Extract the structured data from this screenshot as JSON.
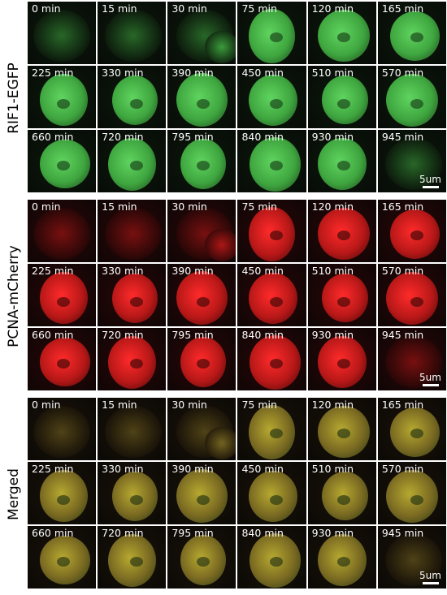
{
  "panels": [
    {
      "label": "RIF1-EGFP",
      "scale_bar": "5um",
      "colors": {
        "bg": "#0c1a0c",
        "cell": "#3fa63f",
        "bright": "#5fd45f",
        "dark": "#1d4a1d"
      },
      "rows": [
        [
          "0 min",
          "15 min",
          "30 min",
          "75 min",
          "120 min",
          "165 min"
        ],
        [
          "225 min",
          "330 min",
          "390 min",
          "450 min",
          "510 min",
          "570 min"
        ],
        [
          "660 min",
          "720 min",
          "795 min",
          "840 min",
          "930 min",
          "945 min"
        ]
      ]
    },
    {
      "label": "PCNA-mCherry",
      "scale_bar": "5um",
      "colors": {
        "bg": "#2a0606",
        "cell": "#b81818",
        "bright": "#ff2a2a",
        "dark": "#4a0808"
      },
      "rows": [
        [
          "0 min",
          "15 min",
          "30 min",
          "75 min",
          "120 min",
          "165 min"
        ],
        [
          "225 min",
          "330 min",
          "390 min",
          "450 min",
          "510 min",
          "570 min"
        ],
        [
          "660 min",
          "720 min",
          "795 min",
          "840 min",
          "930 min",
          "945 min"
        ]
      ]
    },
    {
      "label": "Merged",
      "scale_bar": "5um",
      "colors": {
        "bg": "#1a1208",
        "cell": "#7a6a22",
        "bright": "#b6a830",
        "dark": "#2e3a14"
      },
      "rows": [
        [
          "0 min",
          "15 min",
          "30 min",
          "75 min",
          "120 min",
          "165 min"
        ],
        [
          "225 min",
          "330 min",
          "390 min",
          "450 min",
          "510 min",
          "570 min"
        ],
        [
          "660 min",
          "720 min",
          "795 min",
          "840 min",
          "930 min",
          "945 min"
        ]
      ]
    }
  ]
}
